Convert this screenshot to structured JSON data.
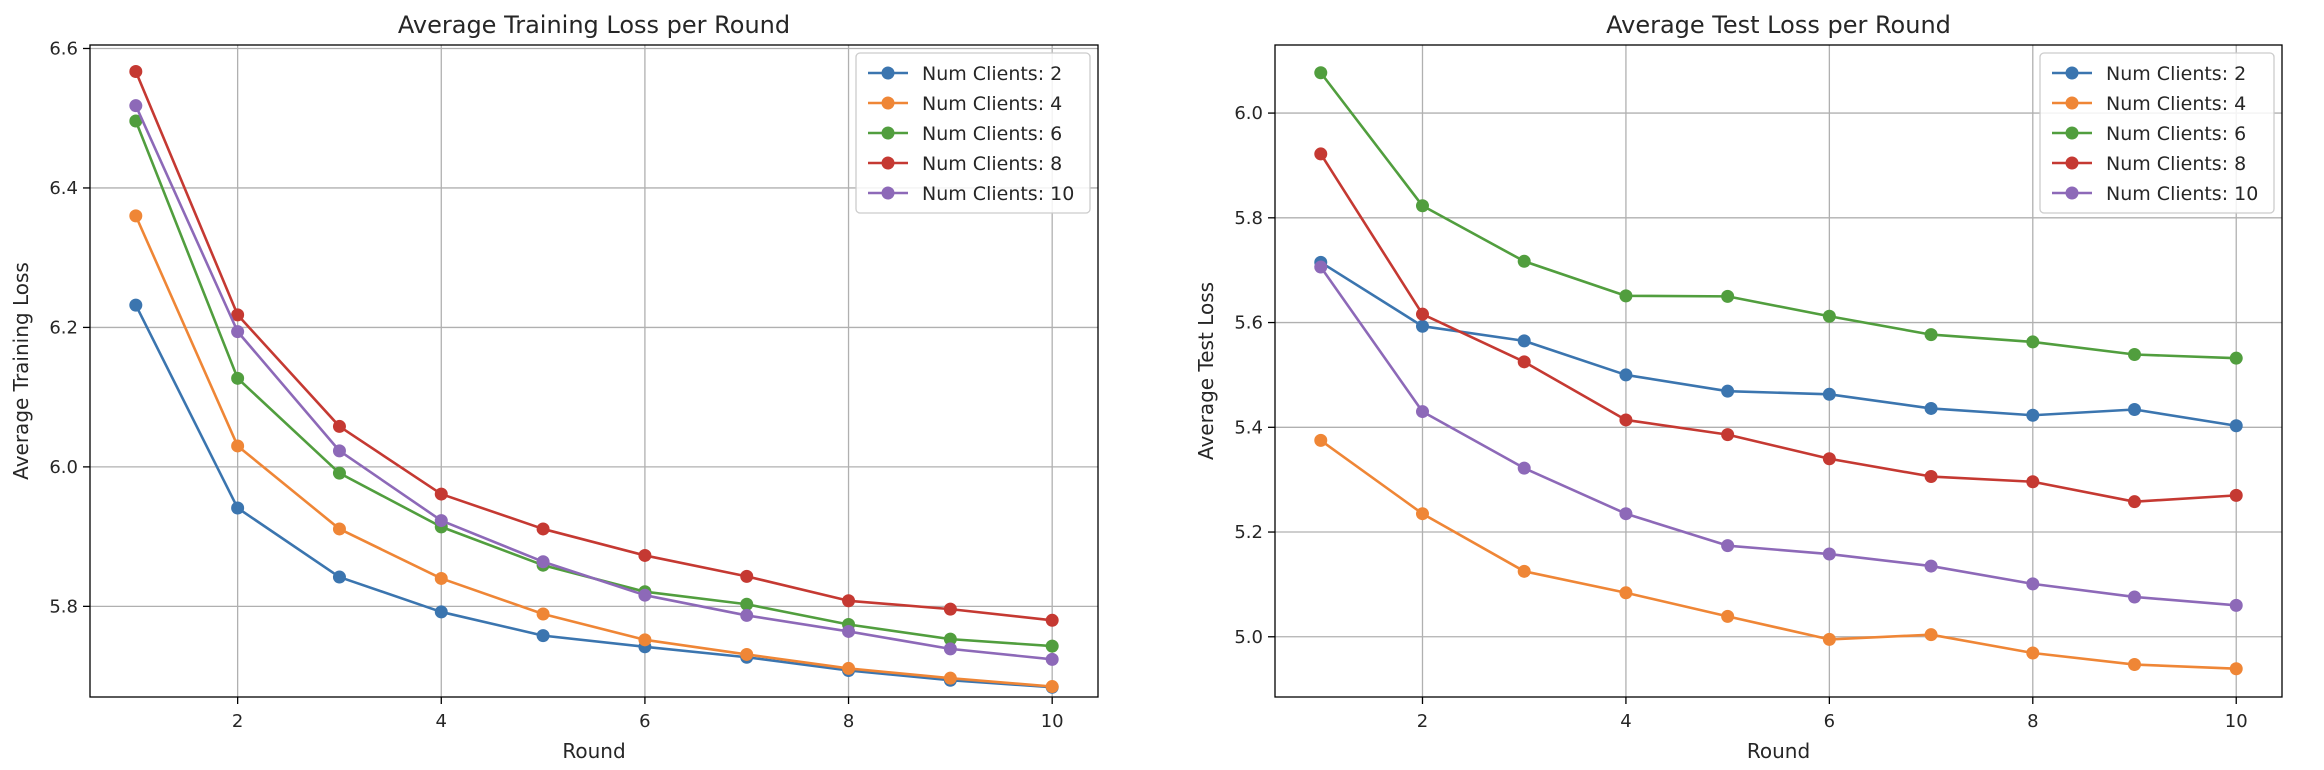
{
  "chart_data": [
    {
      "type": "line",
      "title": "Average Training Loss per Round",
      "xlabel": "Round",
      "ylabel": "Average Training Loss",
      "x": [
        1,
        2,
        3,
        4,
        5,
        6,
        7,
        8,
        9,
        10
      ],
      "xlim": [
        0.55,
        10.45
      ],
      "ylim": [
        5.67,
        6.605
      ],
      "xticks": [
        2,
        4,
        6,
        8,
        10
      ],
      "xtick_labels": [
        "2",
        "4",
        "6",
        "8",
        "10"
      ],
      "yticks": [
        5.8,
        6.0,
        6.2,
        6.4,
        6.6
      ],
      "ytick_labels": [
        "5.8",
        "6.0",
        "6.2",
        "6.4",
        "6.6"
      ],
      "grid": true,
      "legend_position": "top-right",
      "series": [
        {
          "name": "Num Clients: 2",
          "color": "#3b75af",
          "values": [
            6.232,
            5.941,
            5.842,
            5.792,
            5.758,
            5.742,
            5.727,
            5.708,
            5.694,
            5.684
          ]
        },
        {
          "name": "Num Clients: 4",
          "color": "#ef8636",
          "values": [
            6.36,
            6.03,
            5.911,
            5.84,
            5.789,
            5.752,
            5.731,
            5.711,
            5.697,
            5.685
          ]
        },
        {
          "name": "Num Clients: 6",
          "color": "#519e3e",
          "values": [
            6.496,
            6.127,
            5.991,
            5.914,
            5.859,
            5.821,
            5.803,
            5.774,
            5.753,
            5.743
          ]
        },
        {
          "name": "Num Clients: 8",
          "color": "#c53932",
          "values": [
            6.567,
            6.218,
            6.058,
            5.961,
            5.911,
            5.873,
            5.843,
            5.808,
            5.796,
            5.78
          ]
        },
        {
          "name": "Num Clients: 10",
          "color": "#8d69b8",
          "values": [
            6.518,
            6.194,
            6.023,
            5.923,
            5.864,
            5.816,
            5.787,
            5.764,
            5.739,
            5.724
          ]
        }
      ]
    },
    {
      "type": "line",
      "title": "Average Test Loss per Round",
      "xlabel": "Round",
      "ylabel": "Average Test Loss",
      "x": [
        1,
        2,
        3,
        4,
        5,
        6,
        7,
        8,
        9,
        10
      ],
      "xlim": [
        0.55,
        10.45
      ],
      "ylim": [
        4.885,
        6.13
      ],
      "xticks": [
        2,
        4,
        6,
        8,
        10
      ],
      "xtick_labels": [
        "2",
        "4",
        "6",
        "8",
        "10"
      ],
      "yticks": [
        5.0,
        5.2,
        5.4,
        5.6,
        5.8,
        6.0
      ],
      "ytick_labels": [
        "5.0",
        "5.2",
        "5.4",
        "5.6",
        "5.8",
        "6.0"
      ],
      "grid": true,
      "legend_position": "top-right",
      "series": [
        {
          "name": "Num Clients: 2",
          "color": "#3b75af",
          "values": [
            5.715,
            5.593,
            5.565,
            5.5,
            5.469,
            5.463,
            5.436,
            5.423,
            5.434,
            5.403
          ]
        },
        {
          "name": "Num Clients: 4",
          "color": "#ef8636",
          "values": [
            5.375,
            5.235,
            5.125,
            5.084,
            5.039,
            4.995,
            5.004,
            4.969,
            4.947,
            4.939
          ]
        },
        {
          "name": "Num Clients: 6",
          "color": "#519e3e",
          "values": [
            6.077,
            5.823,
            5.717,
            5.651,
            5.65,
            5.612,
            5.577,
            5.563,
            5.539,
            5.532
          ]
        },
        {
          "name": "Num Clients: 8",
          "color": "#c53932",
          "values": [
            5.922,
            5.616,
            5.525,
            5.414,
            5.386,
            5.34,
            5.306,
            5.296,
            5.258,
            5.27
          ]
        },
        {
          "name": "Num Clients: 10",
          "color": "#8d69b8",
          "values": [
            5.706,
            5.43,
            5.322,
            5.235,
            5.174,
            5.158,
            5.135,
            5.101,
            5.076,
            5.06
          ]
        }
      ]
    }
  ]
}
